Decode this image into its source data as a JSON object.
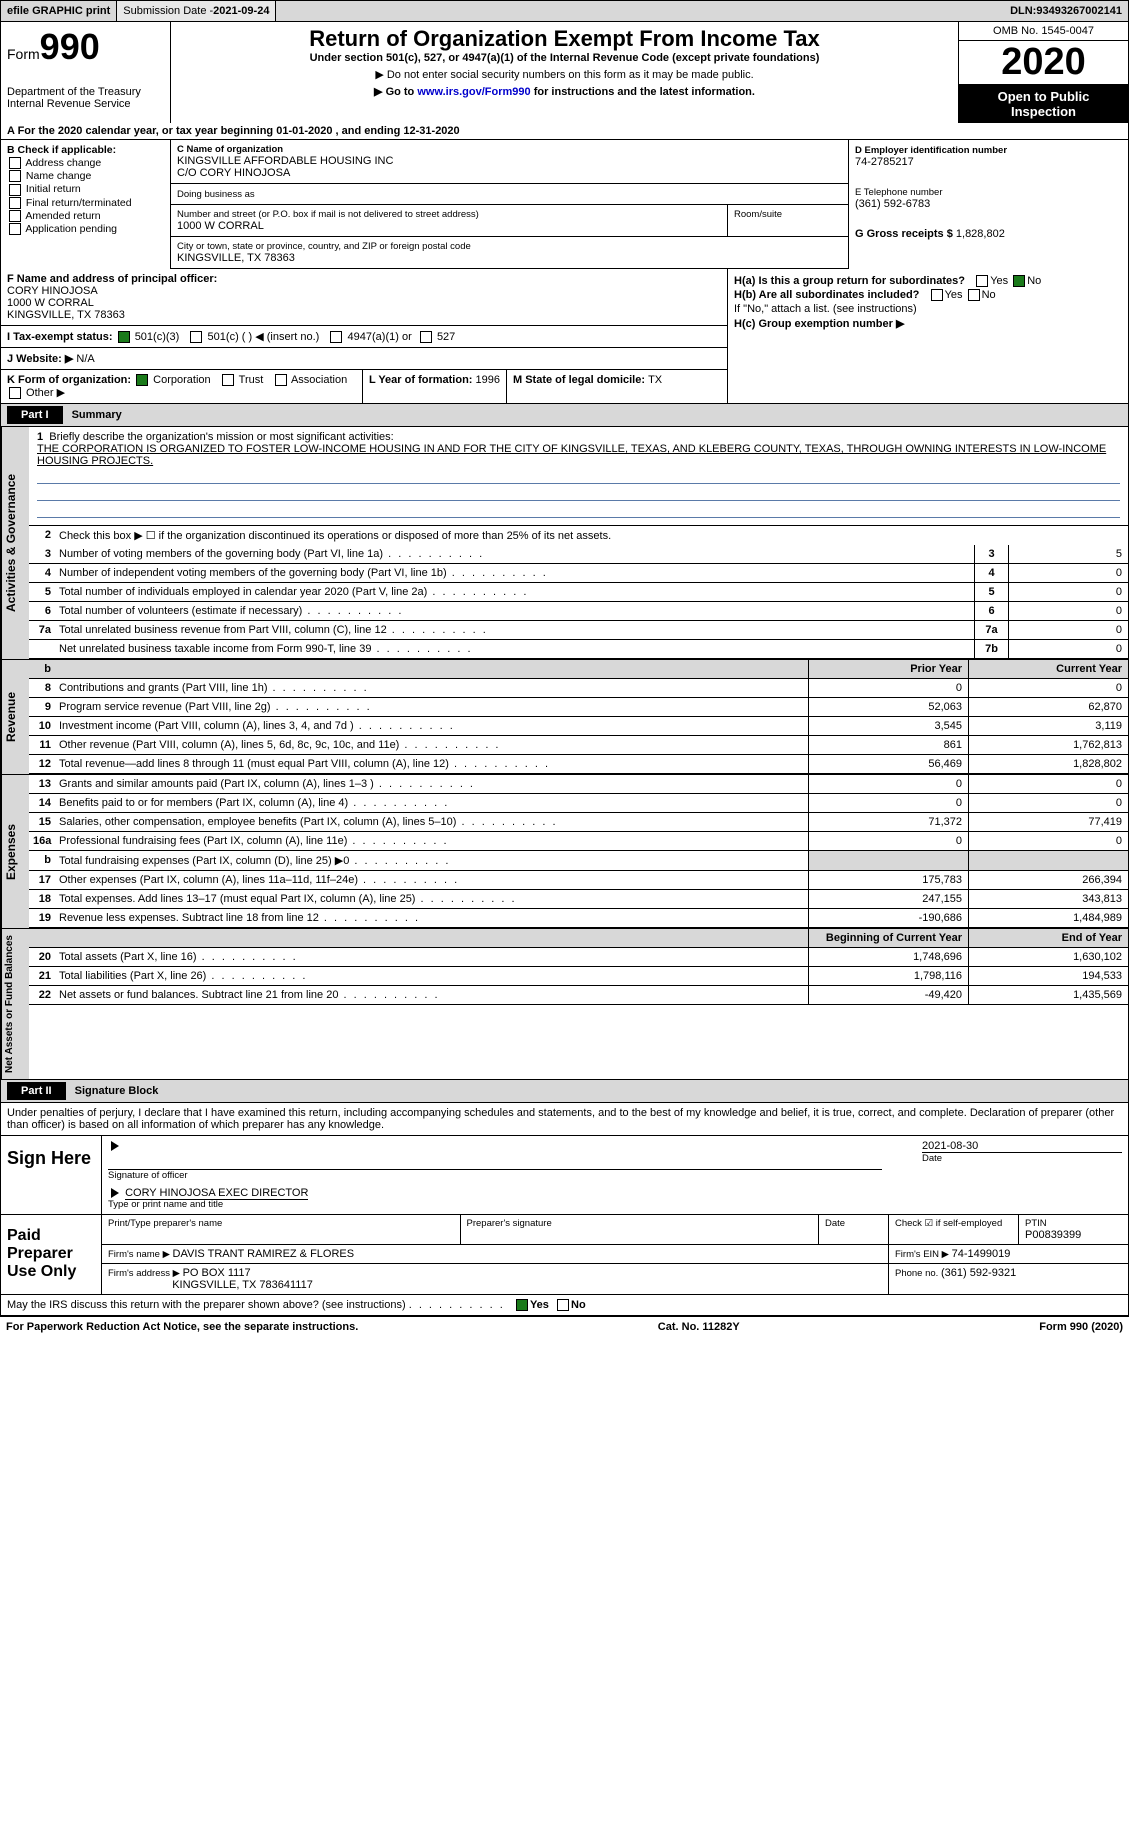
{
  "topbar": {
    "efile": "efile GRAPHIC print",
    "submission_label": "Submission Date - ",
    "submission_date": "2021-09-24",
    "dln_label": "DLN: ",
    "dln": "93493267002141"
  },
  "header": {
    "form_prefix": "Form",
    "form_num": "990",
    "dept1": "Department of the Treasury",
    "dept2": "Internal Revenue Service",
    "title": "Return of Organization Exempt From Income Tax",
    "subtitle": "Under section 501(c), 527, or 4947(a)(1) of the Internal Revenue Code (except private foundations)",
    "note1": "▶ Do not enter social security numbers on this form as it may be made public.",
    "note2_pre": "▶ Go to ",
    "note2_link": "www.irs.gov/Form990",
    "note2_post": " for instructions and the latest information.",
    "omb": "OMB No. 1545-0047",
    "year": "2020",
    "open1": "Open to Public",
    "open2": "Inspection"
  },
  "rowA": {
    "text_pre": "A For the 2020 calendar year, or tax year beginning ",
    "begin": "01-01-2020",
    "mid": "  , and ending ",
    "end": "12-31-2020"
  },
  "colB": {
    "label": "B Check if applicable:",
    "opts": [
      "Address change",
      "Name change",
      "Initial return",
      "Final return/terminated",
      "Amended return",
      "Application pending"
    ]
  },
  "colC": {
    "name_label": "C Name of organization",
    "name1": "KINGSVILLE AFFORDABLE HOUSING INC",
    "name2": "C/O CORY HINOJOSA",
    "dba_label": "Doing business as",
    "street_label": "Number and street (or P.O. box if mail is not delivered to street address)",
    "street": "1000 W CORRAL",
    "room_label": "Room/suite",
    "city_label": "City or town, state or province, country, and ZIP or foreign postal code",
    "city": "KINGSVILLE, TX  78363"
  },
  "colDE": {
    "d_label": "D Employer identification number",
    "d_val": "74-2785217",
    "e_label": "E Telephone number",
    "e_val": "(361) 592-6783",
    "g_label": "G Gross receipts $ ",
    "g_val": "1,828,802"
  },
  "rowF": {
    "label": "F  Name and address of principal officer:",
    "l1": "CORY HINOJOSA",
    "l2": "1000 W CORRAL",
    "l3": "KINGSVILLE, TX  78363"
  },
  "rowH": {
    "a": "H(a)  Is this a group return for subordinates?",
    "b": "H(b)  Are all subordinates included?",
    "b_note": "If \"No,\" attach a list. (see instructions)",
    "c": "H(c)  Group exemption number ▶",
    "yes": "Yes",
    "no": "No"
  },
  "rowI": {
    "label": "I   Tax-exempt status:",
    "o1": "501(c)(3)",
    "o2": "501(c) (  ) ◀ (insert no.)",
    "o3": "4947(a)(1) or",
    "o4": "527"
  },
  "rowJ": {
    "label": "J   Website: ▶",
    "val": "N/A"
  },
  "rowK": {
    "label": "K Form of organization:",
    "opts": [
      "Corporation",
      "Trust",
      "Association",
      "Other ▶"
    ]
  },
  "rowL": {
    "label": "L Year of formation: ",
    "val": "1996"
  },
  "rowM": {
    "label": "M State of legal domicile: ",
    "val": "TX"
  },
  "part1": {
    "hdr": "Part I",
    "title": "Summary",
    "vtab1": "Activities & Governance",
    "vtab2": "Revenue",
    "vtab3": "Expenses",
    "vtab4": "Net Assets or Fund Balances",
    "mission_label": "Briefly describe the organization's mission or most significant activities:",
    "mission": "THE CORPORATION IS ORGANIZED TO FOSTER LOW-INCOME HOUSING IN AND FOR THE CITY OF KINGSVILLE, TEXAS, AND KLEBERG COUNTY, TEXAS, THROUGH OWNING INTERESTS IN LOW-INCOME HOUSING PROJECTS.",
    "l2": "Check this box ▶ ☐  if the organization discontinued its operations or disposed of more than 25% of its net assets.",
    "lines_gov": [
      {
        "n": "3",
        "t": "Number of voting members of the governing body (Part VI, line 1a)",
        "b": "3",
        "v": "5"
      },
      {
        "n": "4",
        "t": "Number of independent voting members of the governing body (Part VI, line 1b)",
        "b": "4",
        "v": "0"
      },
      {
        "n": "5",
        "t": "Total number of individuals employed in calendar year 2020 (Part V, line 2a)",
        "b": "5",
        "v": "0"
      },
      {
        "n": "6",
        "t": "Total number of volunteers (estimate if necessary)",
        "b": "6",
        "v": "0"
      },
      {
        "n": "7a",
        "t": "Total unrelated business revenue from Part VIII, column (C), line 12",
        "b": "7a",
        "v": "0"
      },
      {
        "n": "",
        "t": "Net unrelated business taxable income from Form 990-T, line 39",
        "b": "7b",
        "v": "0"
      }
    ],
    "col_py": "Prior Year",
    "col_cy": "Current Year",
    "lines_rev": [
      {
        "n": "8",
        "t": "Contributions and grants (Part VIII, line 1h)",
        "py": "0",
        "cy": "0"
      },
      {
        "n": "9",
        "t": "Program service revenue (Part VIII, line 2g)",
        "py": "52,063",
        "cy": "62,870"
      },
      {
        "n": "10",
        "t": "Investment income (Part VIII, column (A), lines 3, 4, and 7d )",
        "py": "3,545",
        "cy": "3,119"
      },
      {
        "n": "11",
        "t": "Other revenue (Part VIII, column (A), lines 5, 6d, 8c, 9c, 10c, and 11e)",
        "py": "861",
        "cy": "1,762,813"
      },
      {
        "n": "12",
        "t": "Total revenue—add lines 8 through 11 (must equal Part VIII, column (A), line 12)",
        "py": "56,469",
        "cy": "1,828,802"
      }
    ],
    "lines_exp": [
      {
        "n": "13",
        "t": "Grants and similar amounts paid (Part IX, column (A), lines 1–3 )",
        "py": "0",
        "cy": "0"
      },
      {
        "n": "14",
        "t": "Benefits paid to or for members (Part IX, column (A), line 4)",
        "py": "0",
        "cy": "0"
      },
      {
        "n": "15",
        "t": "Salaries, other compensation, employee benefits (Part IX, column (A), lines 5–10)",
        "py": "71,372",
        "cy": "77,419"
      },
      {
        "n": "16a",
        "t": "Professional fundraising fees (Part IX, column (A), line 11e)",
        "py": "0",
        "cy": "0"
      },
      {
        "n": "b",
        "t": "Total fundraising expenses (Part IX, column (D), line 25) ▶0",
        "py": "",
        "cy": "",
        "shade": true
      },
      {
        "n": "17",
        "t": "Other expenses (Part IX, column (A), lines 11a–11d, 11f–24e)",
        "py": "175,783",
        "cy": "266,394"
      },
      {
        "n": "18",
        "t": "Total expenses. Add lines 13–17 (must equal Part IX, column (A), line 25)",
        "py": "247,155",
        "cy": "343,813"
      },
      {
        "n": "19",
        "t": "Revenue less expenses. Subtract line 18 from line 12",
        "py": "-190,686",
        "cy": "1,484,989"
      }
    ],
    "col_boy": "Beginning of Current Year",
    "col_eoy": "End of Year",
    "lines_net": [
      {
        "n": "20",
        "t": "Total assets (Part X, line 16)",
        "py": "1,748,696",
        "cy": "1,630,102"
      },
      {
        "n": "21",
        "t": "Total liabilities (Part X, line 26)",
        "py": "1,798,116",
        "cy": "194,533"
      },
      {
        "n": "22",
        "t": "Net assets or fund balances. Subtract line 21 from line 20",
        "py": "-49,420",
        "cy": "1,435,569"
      }
    ]
  },
  "part2": {
    "hdr": "Part II",
    "title": "Signature Block",
    "decl": "Under penalties of perjury, I declare that I have examined this return, including accompanying schedules and statements, and to the best of my knowledge and belief, it is true, correct, and complete. Declaration of preparer (other than officer) is based on all information of which preparer has any knowledge.",
    "sign_here": "Sign Here",
    "sig_officer": "Signature of officer",
    "sig_date": "Date",
    "sig_date_val": "2021-08-30",
    "sig_name": "CORY HINOJOSA  EXEC DIRECTOR",
    "sig_name_label": "Type or print name and title",
    "paid": "Paid Preparer Use Only",
    "print_name_label": "Print/Type preparer's name",
    "prep_sig_label": "Preparer's signature",
    "date_label": "Date",
    "check_if": "Check ☑ if self-employed",
    "ptin_label": "PTIN",
    "ptin": "P00839399",
    "firm_name_label": "Firm's name    ▶ ",
    "firm_name": "DAVIS TRANT RAMIREZ & FLORES",
    "firm_ein_label": "Firm's EIN ▶ ",
    "firm_ein": "74-1499019",
    "firm_addr_label": "Firm's address ▶ ",
    "firm_addr1": "PO BOX 1117",
    "firm_addr2": "KINGSVILLE, TX  783641117",
    "phone_label": "Phone no. ",
    "phone": "(361) 592-9321",
    "discuss": "May the IRS discuss this return with the preparer shown above? (see instructions)"
  },
  "footer": {
    "l": "For Paperwork Reduction Act Notice, see the separate instructions.",
    "m": "Cat. No. 11282Y",
    "r": "Form 990 (2020)"
  }
}
